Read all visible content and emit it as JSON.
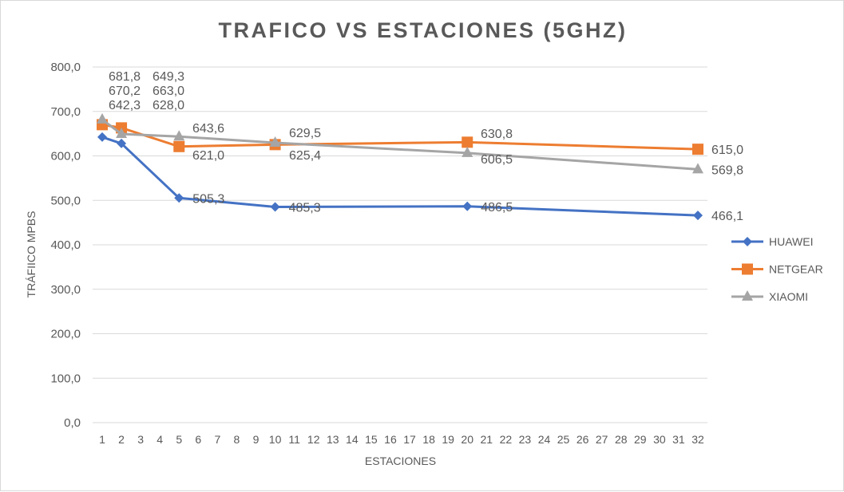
{
  "chart_data": {
    "type": "line",
    "title": "TRAFICO  VS ESTACIONES  (5GHZ)",
    "xlabel": "ESTACIONES",
    "ylabel": "TRÁFIICO MPBS",
    "categories": [
      "1",
      "2",
      "3",
      "4",
      "5",
      "6",
      "7",
      "8",
      "9",
      "10",
      "11",
      "12",
      "13",
      "14",
      "15",
      "16",
      "17",
      "18",
      "19",
      "20",
      "21",
      "22",
      "23",
      "24",
      "25",
      "26",
      "27",
      "28",
      "29",
      "30",
      "31",
      "32"
    ],
    "ylim": [
      0,
      800
    ],
    "yticks": [
      "0,0",
      "100,0",
      "200,0",
      "300,0",
      "400,0",
      "500,0",
      "600,0",
      "700,0",
      "800,0"
    ],
    "grid": true,
    "legend": "right",
    "series": [
      {
        "name": "HUAWEI",
        "color": "#4472c4",
        "marker": "diamond",
        "x": [
          1,
          2,
          5,
          10,
          20,
          32
        ],
        "values": [
          642.3,
          628.0,
          505.3,
          485.3,
          486.5,
          466.1
        ],
        "labels": [
          "642,3",
          "628,0",
          "505,3",
          "485,3",
          "486,5",
          "466,1"
        ]
      },
      {
        "name": "NETGEAR",
        "color": "#ed7d31",
        "marker": "square",
        "x": [
          1,
          2,
          5,
          10,
          20,
          32
        ],
        "values": [
          670.2,
          663.0,
          621.0,
          625.4,
          630.8,
          615.0
        ],
        "labels": [
          "670,2",
          "663,0",
          "621,0",
          "625,4",
          "630,8",
          "615,0"
        ]
      },
      {
        "name": "XIAOMI",
        "color": "#a5a5a5",
        "marker": "triangle",
        "x": [
          1,
          2,
          5,
          10,
          20,
          32
        ],
        "values": [
          681.8,
          649.3,
          643.6,
          629.5,
          606.5,
          569.8
        ],
        "labels": [
          "681,8",
          "649,3",
          "643,6",
          "629,5",
          "606,5",
          "569,8"
        ]
      }
    ]
  }
}
